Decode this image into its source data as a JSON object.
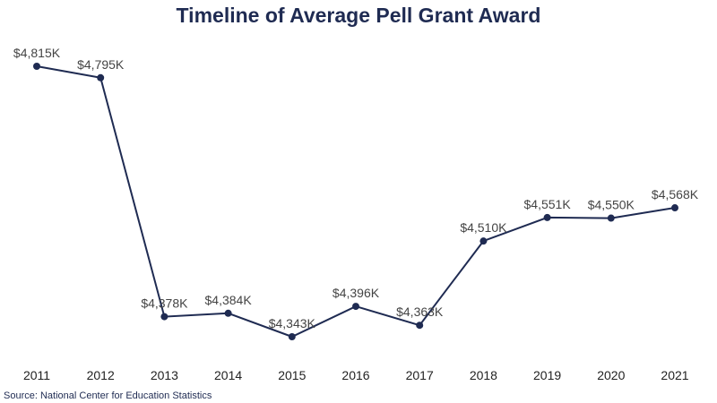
{
  "chart_data": {
    "type": "line",
    "title": "Timeline of Average Pell Grant Award",
    "x": [
      "2011",
      "2012",
      "2013",
      "2014",
      "2015",
      "2016",
      "2017",
      "2018",
      "2019",
      "2020",
      "2021"
    ],
    "values": [
      4815,
      4795,
      4378,
      4384,
      4343,
      4396,
      4363,
      4510,
      4551,
      4550,
      4568
    ],
    "data_labels": [
      "$4,815K",
      "$4,795K",
      "$4,378K",
      "$4,384K",
      "$4,343K",
      "$4,396K",
      "$4,363K",
      "$4,510K",
      "$4,551K",
      "$4,550K",
      "$4,568K"
    ],
    "xlabel": "",
    "ylabel": "",
    "ylim": [
      4300,
      4850
    ],
    "grid": false,
    "legend": "none",
    "line_color": "#1f2b52"
  },
  "source": "Source: National Center for Education Statistics"
}
